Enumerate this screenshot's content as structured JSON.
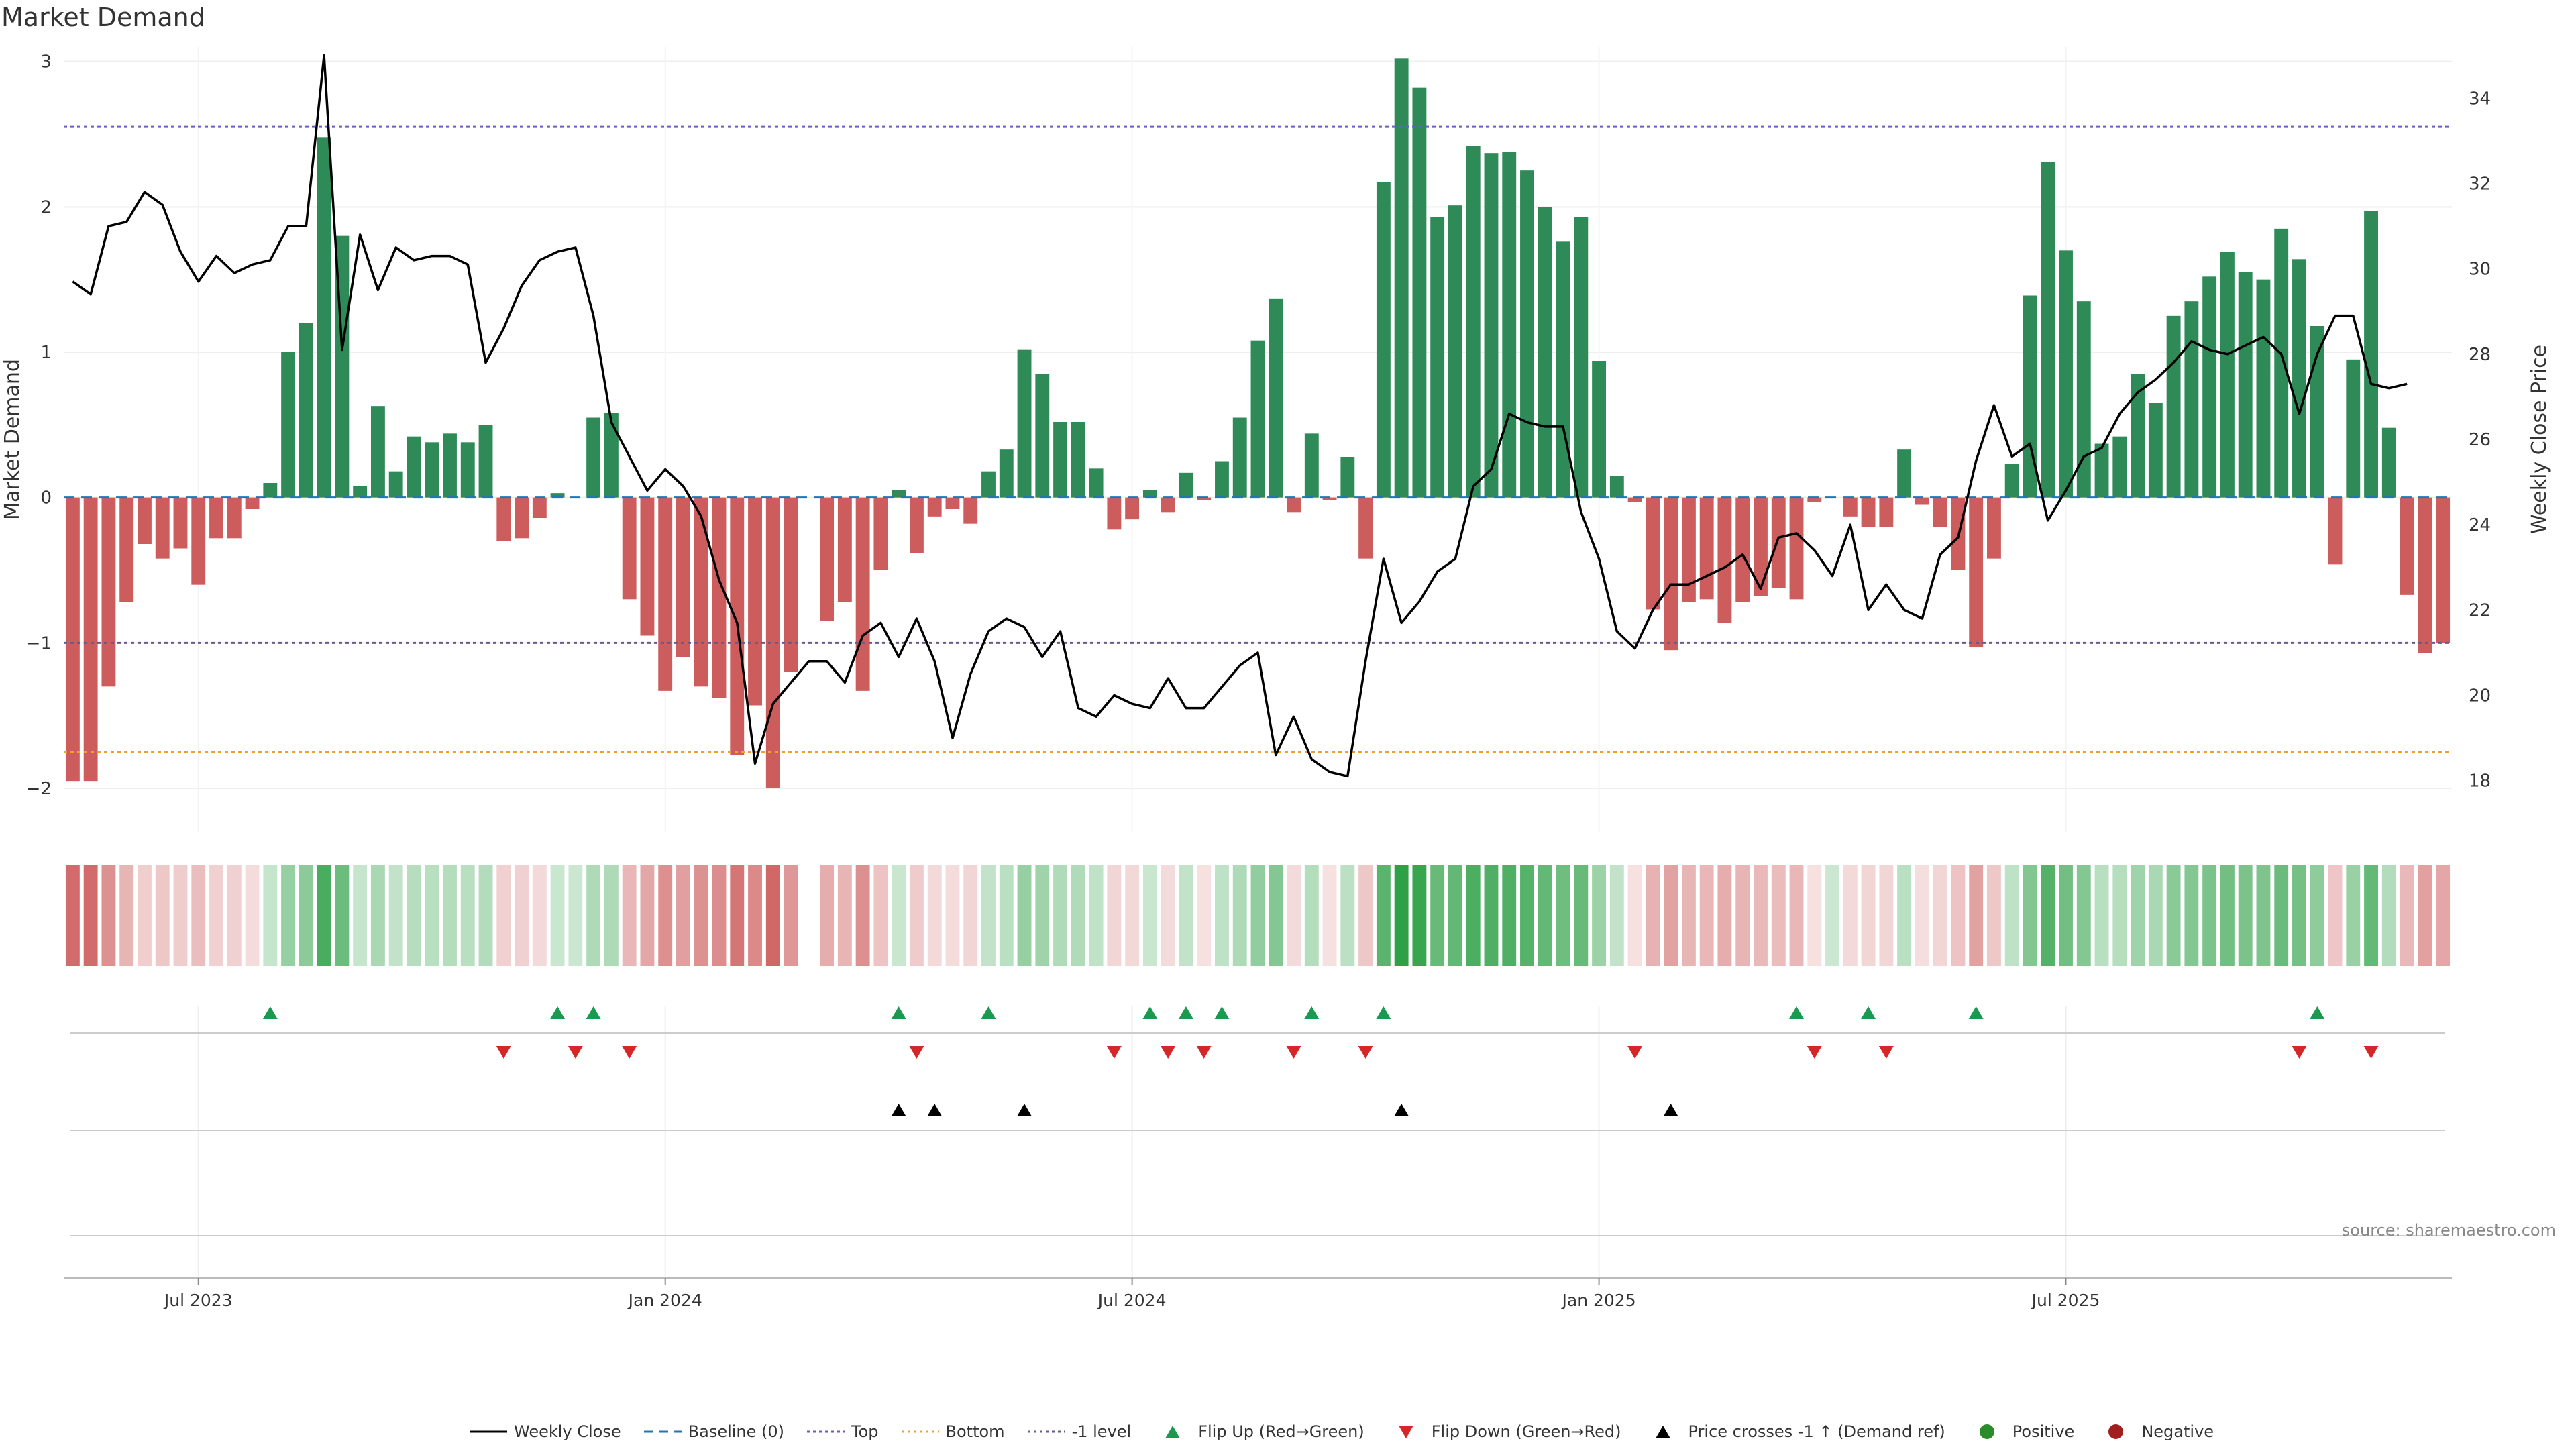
{
  "title": "Market Demand",
  "source": "source: sharemaestro.com",
  "colors": {
    "positive": "#2e8b57",
    "negative": "#cd5c5c",
    "price": "#000000",
    "top": "#6b5bd1",
    "bottom": "#f0a030",
    "minus_one": "#6a5a8a",
    "baseline": "#1f77b4",
    "flip_up": "#1a9a50",
    "flip_down": "#d62728",
    "cross": "#000000",
    "dot_pos": "#2a8c2a",
    "dot_neg": "#a02020"
  },
  "chart_data": {
    "type": "bar",
    "title": "Market Demand",
    "ylabel": "Market Demand",
    "y2label": "Weekly Close Price",
    "ylim": [
      -2.3,
      3.1
    ],
    "y2lim": [
      16.8,
      35.2
    ],
    "yticks": [
      "3",
      "2",
      "1",
      "0",
      "−1",
      "−2"
    ],
    "y2ticks": [
      "34",
      "32",
      "30",
      "28",
      "26",
      "24",
      "22",
      "20",
      "18"
    ],
    "xticks": [
      "Jul 2023",
      "Jan 2024",
      "Jul 2024",
      "Jan 2025",
      "Jul 2025"
    ],
    "levels": {
      "top": 2.55,
      "bottom": -1.75,
      "minus_one": -1.0,
      "baseline": 0
    },
    "demand": [
      -1.95,
      -1.95,
      -1.3,
      -0.72,
      -0.32,
      -0.42,
      -0.35,
      -0.6,
      -0.28,
      -0.28,
      -0.08,
      0.1,
      1.0,
      1.2,
      2.48,
      1.8,
      0.08,
      0.63,
      0.18,
      0.42,
      0.38,
      0.44,
      0.38,
      0.5,
      -0.3,
      -0.28,
      -0.14,
      0.03,
      0,
      0.55,
      0.58,
      -0.7,
      -0.95,
      -1.33,
      -1.1,
      -1.3,
      -1.38,
      -1.77,
      -1.43,
      -2.0,
      -1.2,
      null,
      -0.85,
      -0.72,
      -1.33,
      -0.5,
      0.05,
      -0.38,
      -0.13,
      -0.08,
      -0.18,
      0.18,
      0.33,
      1.02,
      0.85,
      0.52,
      0.52,
      0.2,
      -0.22,
      -0.15,
      0.05,
      -0.1,
      0.17,
      -0.02,
      0.25,
      0.55,
      1.08,
      1.37,
      -0.1,
      0.44,
      -0.02,
      0.28,
      -0.42,
      2.17,
      3.02,
      2.82,
      1.93,
      2.01,
      2.42,
      2.37,
      2.38,
      2.25,
      2.0,
      1.76,
      1.93,
      0.94,
      0.15,
      -0.03,
      -0.77,
      -1.05,
      -0.72,
      -0.7,
      -0.86,
      -0.72,
      -0.68,
      -0.62,
      -0.7,
      -0.03,
      0,
      -0.13,
      -0.2,
      -0.2,
      0.33,
      -0.05,
      -0.2,
      -0.5,
      -1.03,
      -0.42,
      0.23,
      1.39,
      2.31,
      1.7,
      1.35,
      0.37,
      0.42,
      0.85,
      0.65,
      1.25,
      1.35,
      1.52,
      1.69,
      1.55,
      1.5,
      1.85,
      1.64,
      1.18,
      -0.46,
      0.95,
      1.97,
      0.48,
      -0.67,
      -1.07,
      -1.0
    ],
    "price": [
      29.7,
      29.4,
      31.0,
      31.1,
      31.8,
      31.5,
      30.4,
      29.7,
      30.3,
      29.9,
      30.1,
      30.2,
      31.0,
      31.0,
      35.0,
      28.1,
      30.8,
      29.5,
      30.5,
      30.2,
      30.3,
      30.3,
      30.1,
      27.8,
      28.6,
      29.6,
      30.2,
      30.4,
      30.5,
      28.9,
      26.4,
      25.6,
      24.8,
      25.3,
      24.9,
      24.2,
      22.7,
      21.7,
      18.4,
      19.8,
      20.3,
      20.8,
      20.8,
      20.3,
      21.4,
      21.7,
      20.9,
      21.8,
      20.8,
      19.0,
      20.5,
      21.5,
      21.8,
      21.6,
      20.9,
      21.5,
      19.7,
      19.5,
      20.0,
      19.8,
      19.7,
      20.4,
      19.7,
      19.7,
      20.2,
      20.7,
      21.0,
      18.6,
      19.5,
      18.5,
      18.2,
      18.1,
      20.8,
      23.2,
      21.7,
      22.2,
      22.9,
      23.2,
      24.9,
      25.3,
      26.6,
      26.4,
      26.3,
      26.3,
      24.3,
      23.2,
      21.5,
      21.1,
      22.0,
      22.6,
      22.6,
      22.8,
      23.0,
      23.3,
      22.5,
      23.7,
      23.8,
      23.4,
      22.8,
      24.0,
      22.0,
      22.6,
      22.0,
      21.8,
      23.3,
      23.7,
      25.5,
      26.8,
      25.6,
      25.9,
      24.1,
      24.8,
      25.6,
      25.8,
      26.6,
      27.1,
      27.4,
      27.8,
      28.3,
      28.1,
      28.0,
      28.2,
      28.4,
      28.0,
      26.6,
      28.0,
      28.9,
      28.9,
      27.3,
      27.2,
      27.3
    ],
    "flip_up": [
      11,
      27,
      29,
      46,
      51,
      60,
      62,
      64,
      69,
      73,
      96,
      100,
      106,
      125
    ],
    "flip_down": [
      24,
      28,
      31,
      47,
      58,
      61,
      63,
      68,
      72,
      87,
      97,
      101,
      124,
      128
    ],
    "price_cross": [
      46,
      48,
      53,
      74,
      89
    ],
    "heat_gap_index": 41
  },
  "legend": [
    {
      "key": "line_solid",
      "label": "Weekly Close"
    },
    {
      "key": "line_dash",
      "label": "Baseline (0)"
    },
    {
      "key": "line_dot_top",
      "label": "Top"
    },
    {
      "key": "line_dot_bottom",
      "label": "Bottom"
    },
    {
      "key": "line_dot_minus",
      "label": "-1 level"
    },
    {
      "key": "tri_up_green",
      "label": "Flip Up (Red→Green)"
    },
    {
      "key": "tri_down_red",
      "label": "Flip Down (Green→Red)"
    },
    {
      "key": "tri_up_black",
      "label": "Price crosses -1 ↑ (Demand ref)"
    },
    {
      "key": "dot_green",
      "label": "Positive"
    },
    {
      "key": "dot_red",
      "label": "Negative"
    }
  ]
}
